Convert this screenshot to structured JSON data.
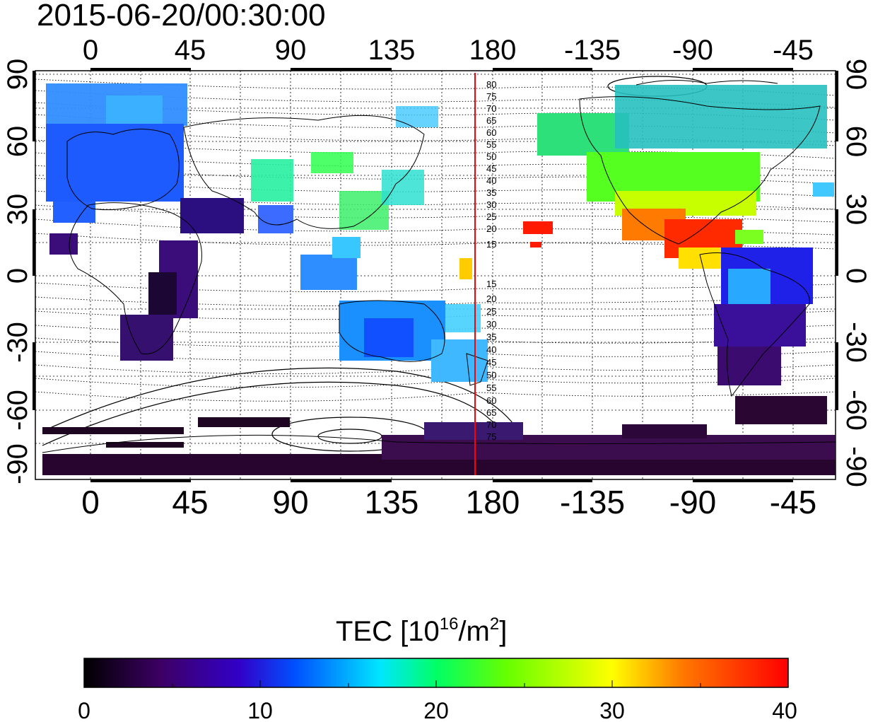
{
  "map": {
    "title": "2015-06-20/00:30:00",
    "top_lon_ticks": [
      "0",
      "45",
      "90",
      "135",
      "180",
      "-135",
      "-90",
      "-45"
    ],
    "bottom_lon_ticks": [
      "0",
      "45",
      "90",
      "135",
      "180",
      "-135",
      "-90",
      "-45"
    ],
    "left_lat_ticks": [
      "90",
      "60",
      "30",
      "0",
      "-30",
      "-60",
      "-90"
    ],
    "right_lat_ticks": [
      "90",
      "60",
      "30",
      "0",
      "-30",
      "-60",
      "-90"
    ],
    "terminator_line_color": "#ff0000",
    "contour_labels_north": [
      "80",
      "75",
      "70",
      "65",
      "60",
      "55",
      "50",
      "45",
      "40",
      "35",
      "30",
      "25",
      "20",
      "15"
    ],
    "contour_labels_south": [
      "15",
      "20",
      "25",
      "30",
      "35",
      "40",
      "45",
      "50",
      "55",
      "60",
      "65",
      "70",
      "75"
    ]
  },
  "colorbar": {
    "label_prefix": "TEC  [10",
    "label_sup1": "16",
    "label_mid": "/m",
    "label_sup2": "2",
    "label_suffix": "]",
    "tick_labels": [
      "0",
      "10",
      "20",
      "30",
      "40"
    ],
    "range": [
      0,
      40
    ],
    "colors": [
      "#000000",
      "#3d0066",
      "#3200c8",
      "#0050ff",
      "#00e6ff",
      "#00ff66",
      "#66ff00",
      "#ffff00",
      "#ff7800",
      "#ff0000"
    ]
  }
}
